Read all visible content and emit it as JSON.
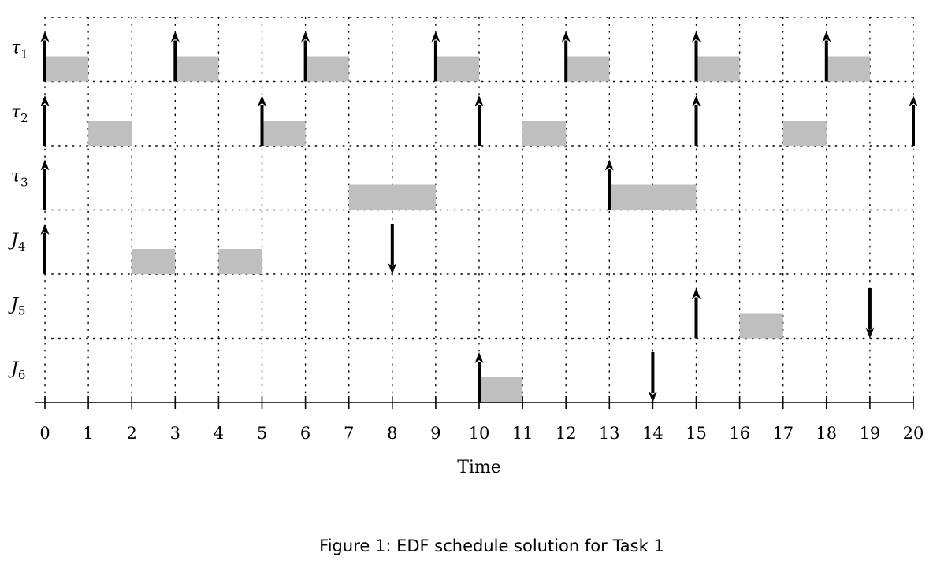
{
  "chart_data": {
    "type": "gantt",
    "xlabel": "Time",
    "xlim": [
      0,
      20
    ],
    "xticks": [
      0,
      1,
      2,
      3,
      4,
      5,
      6,
      7,
      8,
      9,
      10,
      11,
      12,
      13,
      14,
      15,
      16,
      17,
      18,
      19,
      20
    ],
    "caption": "Figure 1: EDF schedule solution for Task 1",
    "colors": {
      "block": "#bfbfbf",
      "arrow": "#000000",
      "grid": "#000000"
    },
    "rows": [
      {
        "name": "τ",
        "sub": "1",
        "releases": [
          0,
          3,
          6,
          9,
          12,
          15,
          18
        ],
        "deadlines": [],
        "executions": [
          [
            0,
            1
          ],
          [
            3,
            4
          ],
          [
            6,
            7
          ],
          [
            9,
            10
          ],
          [
            12,
            13
          ],
          [
            15,
            16
          ],
          [
            18,
            19
          ]
        ]
      },
      {
        "name": "τ",
        "sub": "2",
        "releases": [
          0,
          5,
          10,
          15,
          20
        ],
        "deadlines": [],
        "executions": [
          [
            1,
            2
          ],
          [
            5,
            6
          ],
          [
            11,
            12
          ],
          [
            17,
            18
          ]
        ]
      },
      {
        "name": "τ",
        "sub": "3",
        "releases": [
          0,
          13
        ],
        "deadlines": [],
        "executions": [
          [
            7,
            9
          ],
          [
            13,
            15
          ]
        ]
      },
      {
        "name": "J",
        "sub": "4",
        "releases": [
          0
        ],
        "deadlines": [
          8
        ],
        "executions": [
          [
            2,
            3
          ],
          [
            4,
            5
          ]
        ]
      },
      {
        "name": "J",
        "sub": "5",
        "releases": [
          15
        ],
        "deadlines": [
          19
        ],
        "executions": [
          [
            16,
            17
          ]
        ]
      },
      {
        "name": "J",
        "sub": "6",
        "releases": [
          10
        ],
        "deadlines": [
          14
        ],
        "executions": [
          [
            10,
            11
          ]
        ]
      }
    ]
  }
}
